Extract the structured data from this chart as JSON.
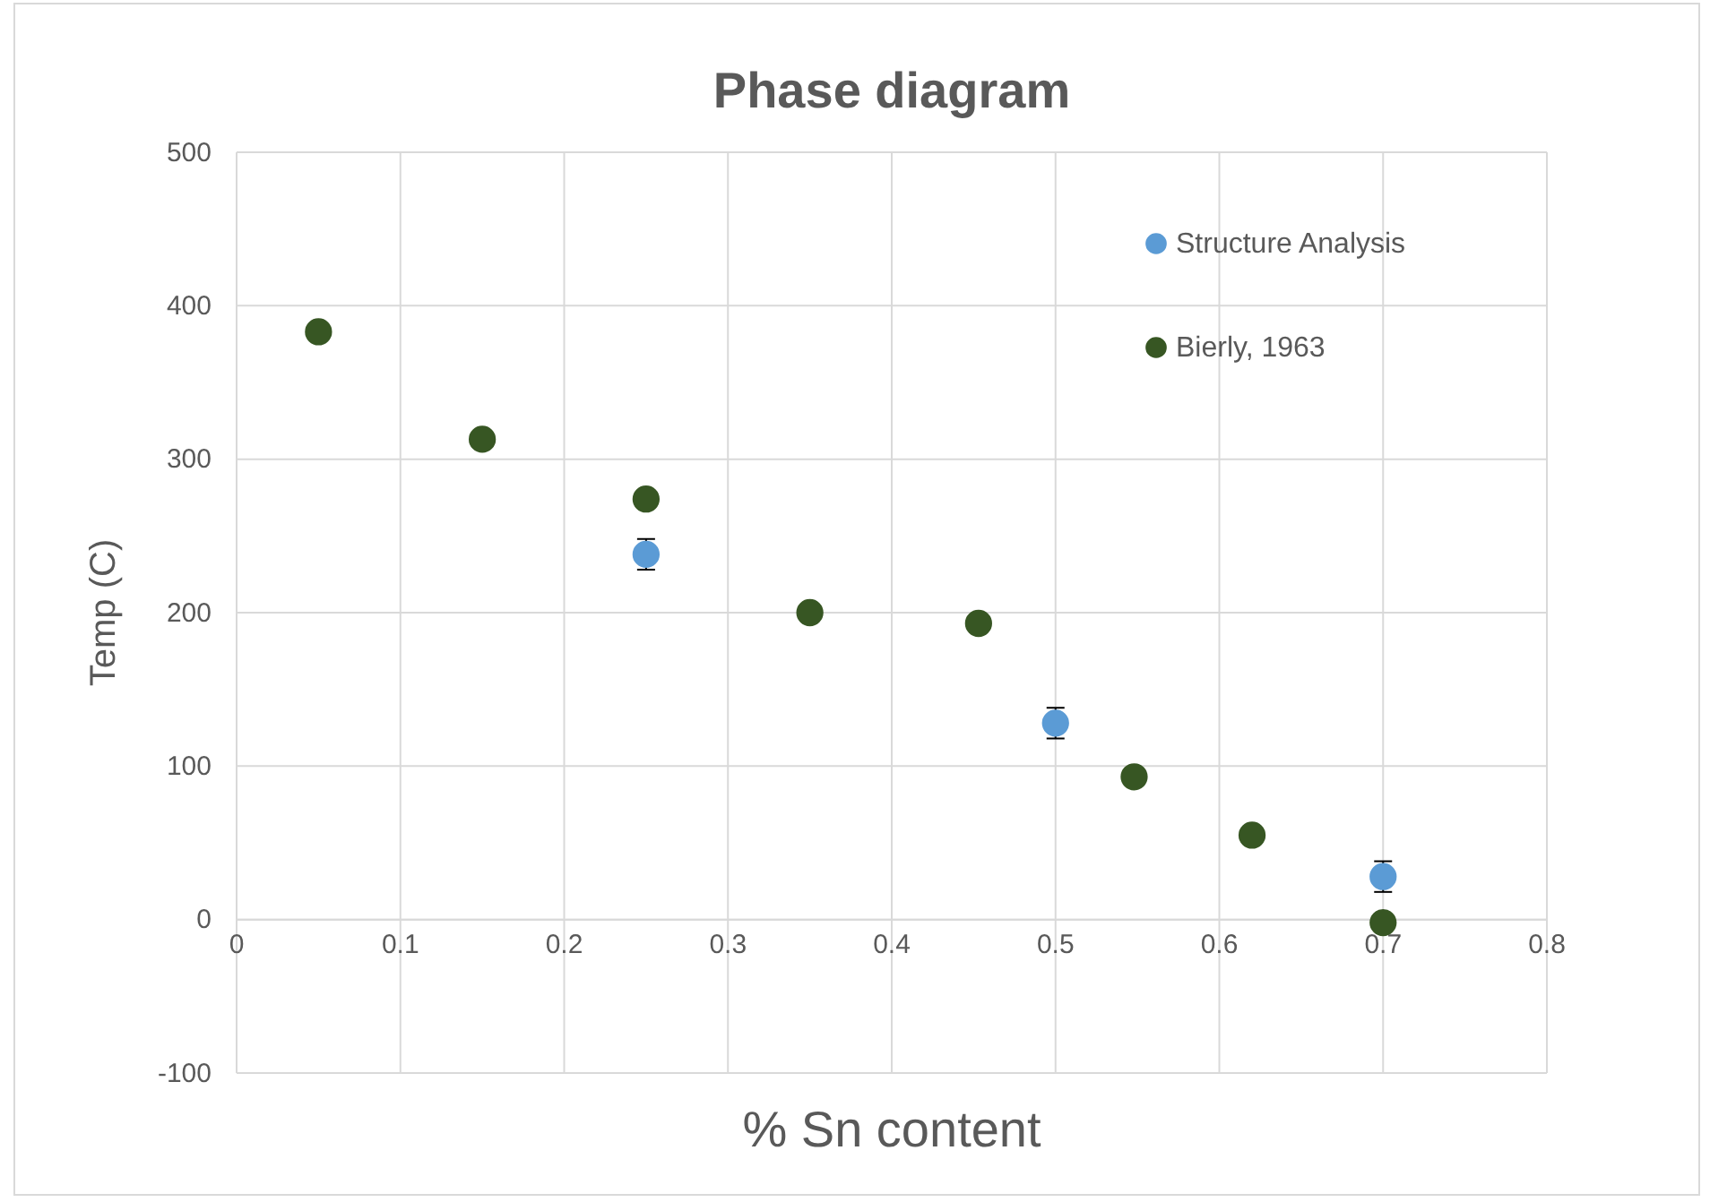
{
  "chart_data": {
    "type": "scatter",
    "title": "Phase diagram",
    "xlabel": "% Sn content",
    "ylabel": "Temp (C)",
    "xlim": [
      0,
      0.8
    ],
    "xticks": [
      0,
      0.1,
      0.2,
      0.3,
      0.4,
      0.5,
      0.6,
      0.7,
      0.8
    ],
    "ylim": [
      -100,
      500
    ],
    "yticks": [
      -100,
      0,
      100,
      200,
      300,
      400,
      500
    ],
    "grid": true,
    "legend": "top right",
    "marker": "circle",
    "series": [
      {
        "name": "Structure Analysis",
        "color": "#5b9bd5",
        "x": [
          0.25,
          0.5,
          0.7
        ],
        "values": [
          238,
          128,
          28
        ],
        "errors": [
          10,
          10,
          10
        ]
      },
      {
        "name": "Bierly, 1963",
        "color": "#375623",
        "x": [
          0.05,
          0.15,
          0.25,
          0.35,
          0.453,
          0.548,
          0.62,
          0.7
        ],
        "values": [
          383,
          313,
          274,
          200,
          193,
          93,
          55,
          -2
        ]
      }
    ]
  }
}
